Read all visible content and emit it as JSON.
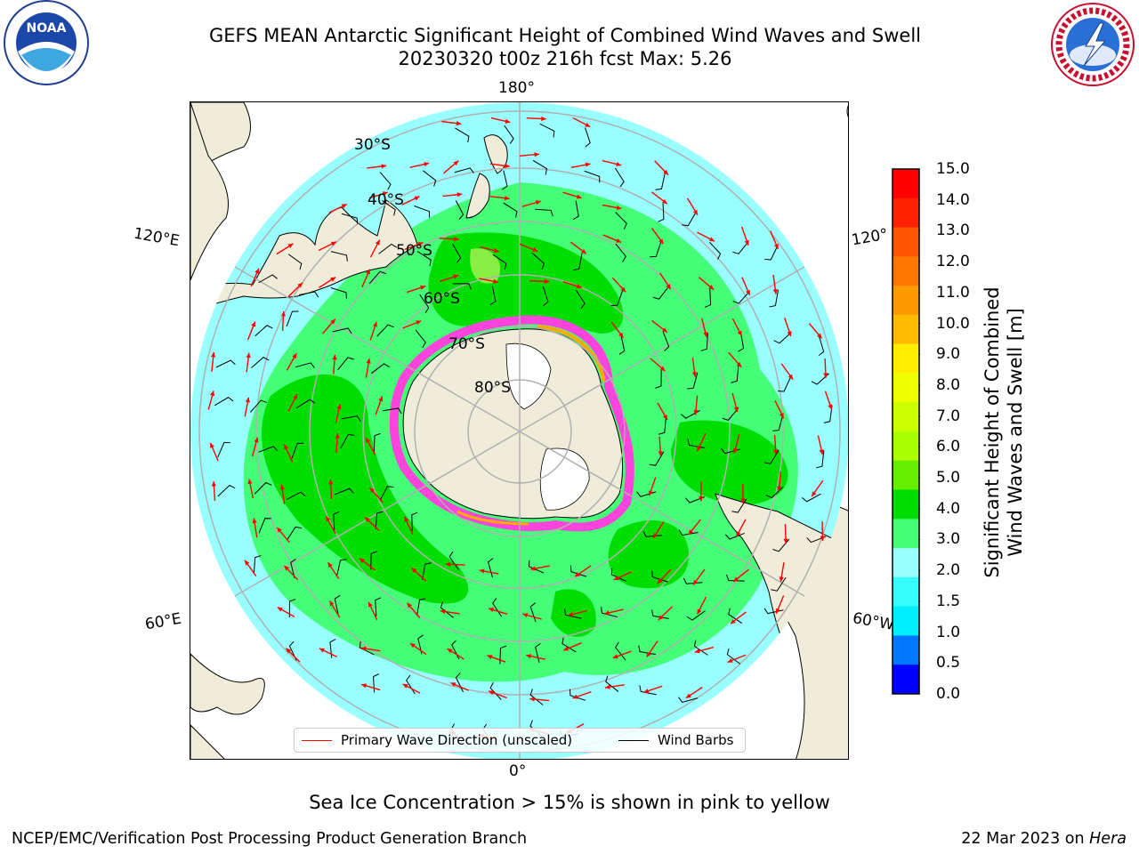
{
  "title_line1": "GEFS MEAN Antarctic Significant Height of Combined Wind Waves and Swell",
  "title_line2": "20230320 t00z 216h fcst   Max: 5.26",
  "lon_labels": {
    "top": "180°",
    "upper_left": "120°E",
    "upper_right": "120°",
    "lower_left": "60°E",
    "lower_right": "60°W",
    "bottom": "0°"
  },
  "lat_labels": [
    "30°S",
    "40°S",
    "50°S",
    "60°S",
    "70°S",
    "80°S"
  ],
  "colorbar": {
    "label_line1": "Significant Height of Combined",
    "label_line2": "Wind Waves and Swell [m]",
    "ticks": [
      "15.0",
      "14.0",
      "13.0",
      "12.0",
      "11.0",
      "10.0",
      "9.0",
      "8.0",
      "7.0",
      "6.0",
      "5.0",
      "4.0",
      "3.0",
      "2.0",
      "1.5",
      "1.0",
      "0.5",
      "0.0"
    ],
    "colors_top_to_bottom": [
      "#ff0000",
      "#ff2200",
      "#ff5500",
      "#ff7700",
      "#ff9900",
      "#ffbb00",
      "#ffee00",
      "#eeff00",
      "#ccff00",
      "#aaff00",
      "#66ee00",
      "#00dd00",
      "#44ff77",
      "#99ffff",
      "#33ffff",
      "#00eeff",
      "#0077ff",
      "#0000ff"
    ]
  },
  "legend": {
    "wave_direction": "Primary Wave Direction (unscaled)",
    "wind_barbs": "Wind Barbs"
  },
  "sea_ice_note": "Sea Ice Concentration > 15% is shown in pink to yellow",
  "credit_left": "NCEP/EMC/Verification Post Processing Product Generation Branch",
  "credit_right_date": "22 Mar 2023 on ",
  "credit_right_host": "Hera",
  "colors": {
    "ocean_light": "#99ffff",
    "ocean_green": "#44ff77",
    "ocean_bright": "#00dd00",
    "land": "#efedd9",
    "arrow": "#ff0000",
    "sea_ice": "#ff44dd",
    "graticule": "#b0b0b0"
  },
  "logos": [
    "noaa-logo",
    "nws-logo"
  ]
}
